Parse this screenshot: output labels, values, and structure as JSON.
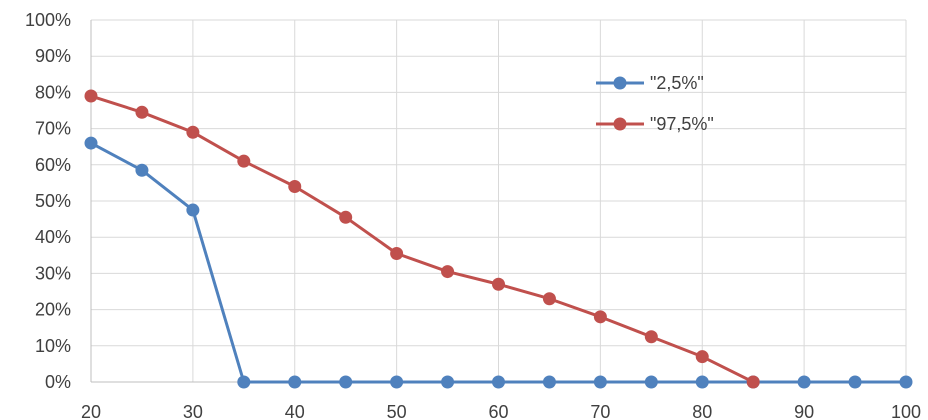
{
  "chart_data": {
    "type": "line",
    "title": "",
    "xlabel": "",
    "ylabel": "",
    "xlim": [
      20,
      100
    ],
    "ylim": [
      0,
      100
    ],
    "x_ticks": [
      20,
      30,
      40,
      50,
      60,
      70,
      80,
      90,
      100
    ],
    "y_ticks": [
      0,
      10,
      20,
      30,
      40,
      50,
      60,
      70,
      80,
      90,
      100
    ],
    "y_tick_labels": [
      "0%",
      "10%",
      "20%",
      "30%",
      "40%",
      "50%",
      "60%",
      "70%",
      "80%",
      "90%",
      "100%"
    ],
    "grid": true,
    "legend_position": "top-right",
    "x": [
      20,
      25,
      30,
      35,
      40,
      45,
      50,
      55,
      60,
      65,
      70,
      75,
      80,
      85,
      90,
      95,
      100
    ],
    "series": [
      {
        "name": "\"2,5%\"",
        "color": "#4F81BD",
        "values": [
          66,
          58.5,
          47.5,
          0,
          0,
          0,
          0,
          0,
          0,
          0,
          0,
          0,
          0,
          0,
          0,
          0,
          0
        ]
      },
      {
        "name": "\"97,5%\"",
        "color": "#C0504D",
        "values": [
          79,
          74.5,
          69,
          61,
          54,
          45.5,
          35.5,
          30.5,
          27,
          23,
          18,
          12.5,
          7,
          0,
          null,
          null,
          null
        ]
      }
    ]
  }
}
